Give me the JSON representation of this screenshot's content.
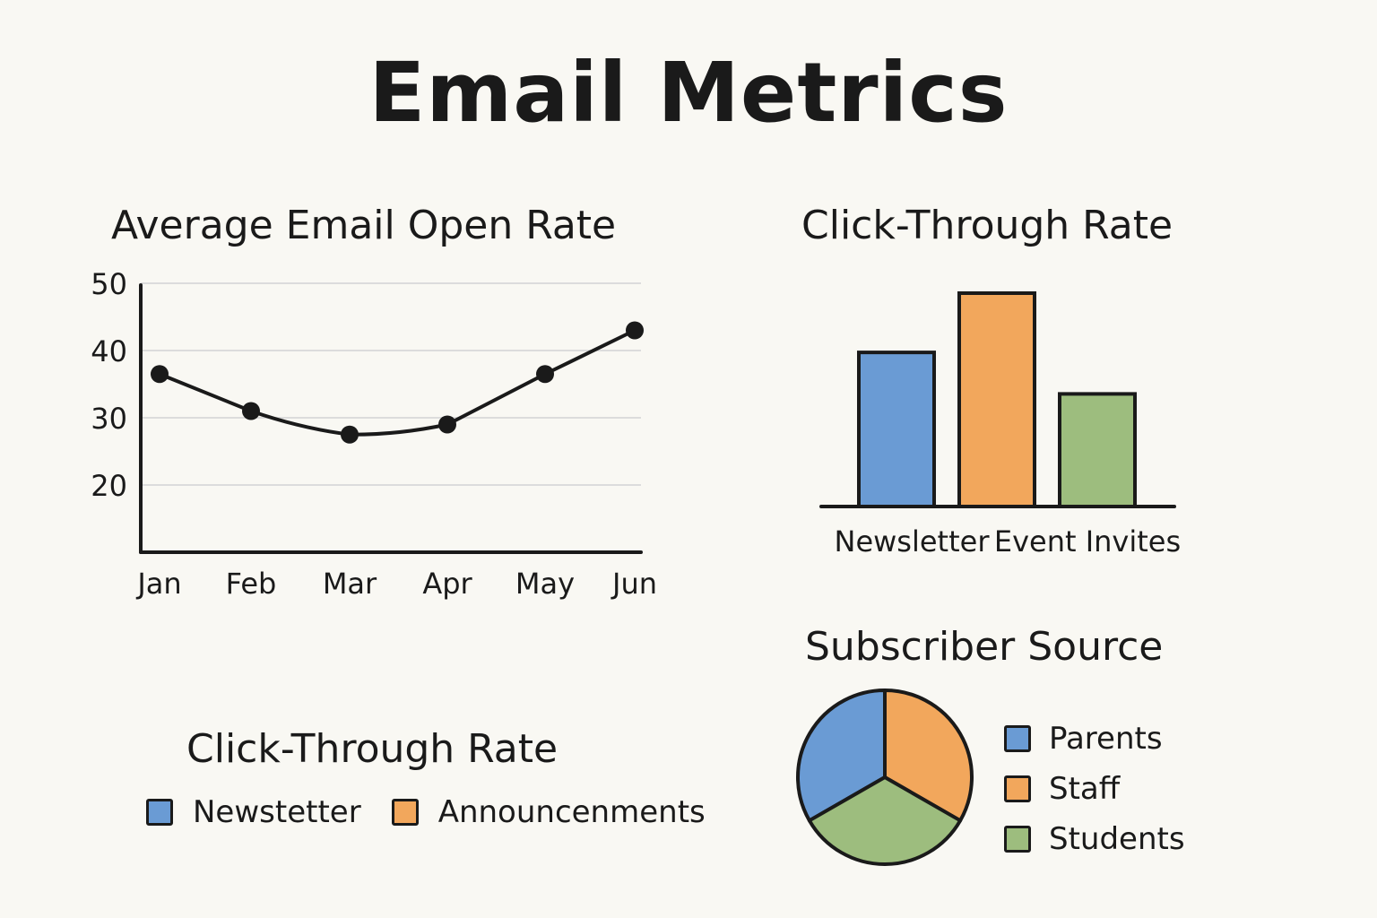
{
  "page": {
    "title": "Email Metrics"
  },
  "colors": {
    "blue": "#6a9bd4",
    "orange": "#f2a75c",
    "green": "#9dbd7e",
    "ink": "#1a1a1a",
    "grid": "#dcdcdc"
  },
  "chart_data": [
    {
      "type": "line",
      "title": "Average Email Open Rate",
      "categories": [
        "Jan",
        "Feb",
        "Mar",
        "Apr",
        "May",
        "Jun"
      ],
      "series": [
        {
          "values": [
            36.5,
            31,
            27.5,
            29,
            36.5,
            43
          ]
        }
      ],
      "yticks": [
        20,
        30,
        40,
        50
      ],
      "ylim": [
        10,
        50
      ],
      "grid": true
    },
    {
      "type": "bar",
      "title": "Click-Through Rate",
      "categories": [
        "Newsletter",
        "",
        "Event Invites"
      ],
      "values": [
        26,
        36,
        19
      ],
      "colors": [
        "#6a9bd4",
        "#f2a75c",
        "#9dbd7e"
      ],
      "ylim": [
        0,
        36
      ]
    },
    {
      "type": "pie",
      "title": "Subscriber Source",
      "labels": [
        "Parents",
        "Staff",
        "Students"
      ],
      "values": [
        33.3,
        33.3,
        33.4
      ],
      "colors": [
        "#6a9bd4",
        "#f2a75c",
        "#9dbd7e"
      ],
      "legend": "right"
    }
  ],
  "ctr_legend": {
    "title": "Click-Through Rate",
    "items": [
      {
        "label": "Newstetter",
        "color": "#6a9bd4"
      },
      {
        "label": "Announcenments",
        "color": "#f2a75c"
      }
    ]
  }
}
